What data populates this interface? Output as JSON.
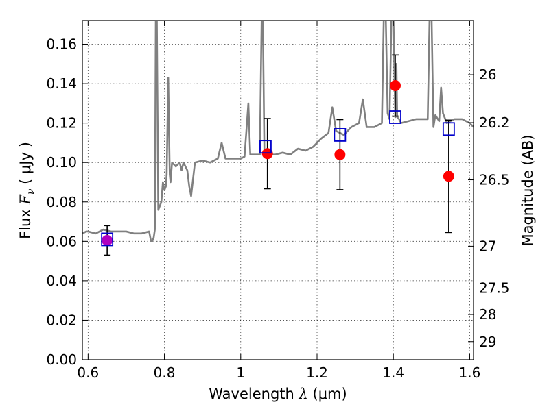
{
  "chart_data": {
    "type": "scatter",
    "title": "",
    "xlabel": "Wavelength  λ (μm)",
    "xlabel_parts": {
      "text": "Wavelength  ",
      "sym": "λ",
      "unit": " (μm)"
    },
    "ylabel": "Flux  Fν  ( μJy )",
    "ylabel_parts": {
      "text": "Flux  ",
      "sym": "F",
      "sub": "ν",
      "unit": "  ( μJy )"
    },
    "y2label": "Magnitude (AB)",
    "xlim": [
      0.585,
      1.61
    ],
    "ylim": [
      0.0,
      0.172
    ],
    "grid": true,
    "x_ticks": [
      {
        "value": 0.6,
        "label": "0.6"
      },
      {
        "value": 0.8,
        "label": "0.8"
      },
      {
        "value": 1.0,
        "label": "1"
      },
      {
        "value": 1.2,
        "label": "1.2"
      },
      {
        "value": 1.4,
        "label": "1.4"
      },
      {
        "value": 1.6,
        "label": "1.6"
      }
    ],
    "y_ticks": [
      {
        "value": 0.0,
        "label": "0.00"
      },
      {
        "value": 0.02,
        "label": "0.02"
      },
      {
        "value": 0.04,
        "label": "0.04"
      },
      {
        "value": 0.06,
        "label": "0.06"
      },
      {
        "value": 0.08,
        "label": "0.08"
      },
      {
        "value": 0.1,
        "label": "0.10"
      },
      {
        "value": 0.12,
        "label": "0.12"
      },
      {
        "value": 0.14,
        "label": "0.14"
      },
      {
        "value": 0.16,
        "label": "0.16"
      }
    ],
    "y2_ticks": [
      {
        "value": 26,
        "label": "26"
      },
      {
        "value": 26.2,
        "label": "26.2"
      },
      {
        "value": 26.5,
        "label": "26.5"
      },
      {
        "value": 27,
        "label": "27"
      },
      {
        "value": 27.5,
        "label": "27.5"
      },
      {
        "value": 28,
        "label": "28"
      },
      {
        "value": 29,
        "label": "29"
      }
    ],
    "colors": {
      "model": "#808080",
      "observed": "#ff0000",
      "observed_first": "#b000c0",
      "model_band": "#0000cc",
      "errorbar": "#000000"
    },
    "series": [
      {
        "kind": "model_spectrum",
        "x": [
          0.585,
          0.595,
          0.6,
          0.62,
          0.64,
          0.66,
          0.68,
          0.7,
          0.72,
          0.74,
          0.76,
          0.765,
          0.768,
          0.772,
          0.775,
          0.7775,
          0.78,
          0.784,
          0.788,
          0.792,
          0.796,
          0.8,
          0.804,
          0.806,
          0.81,
          0.814,
          0.816,
          0.82,
          0.83,
          0.84,
          0.845,
          0.85,
          0.86,
          0.865,
          0.87,
          0.88,
          0.88,
          0.9,
          0.92,
          0.94,
          0.95,
          0.96,
          0.98,
          1.0,
          1.01,
          1.02,
          1.025,
          1.03,
          1.05,
          1.055,
          1.058,
          1.062,
          1.065,
          1.068,
          1.075,
          1.09,
          1.11,
          1.13,
          1.15,
          1.17,
          1.19,
          1.21,
          1.23,
          1.24,
          1.25,
          1.27,
          1.29,
          1.31,
          1.32,
          1.33,
          1.35,
          1.37,
          1.375,
          1.38,
          1.385,
          1.39,
          1.395,
          1.4,
          1.405,
          1.408,
          1.41,
          1.415,
          1.42,
          1.44,
          1.46,
          1.48,
          1.49,
          1.495,
          1.5,
          1.505,
          1.51,
          1.52,
          1.525,
          1.53,
          1.54,
          1.56,
          1.58,
          1.6,
          1.61
        ],
        "y": [
          0.064,
          0.065,
          0.065,
          0.064,
          0.066,
          0.065,
          0.065,
          0.065,
          0.064,
          0.064,
          0.065,
          0.06,
          0.06,
          0.062,
          0.066,
          0.175,
          0.175,
          0.076,
          0.078,
          0.08,
          0.09,
          0.086,
          0.088,
          0.094,
          0.143,
          0.094,
          0.09,
          0.1,
          0.098,
          0.1,
          0.096,
          0.1,
          0.096,
          0.088,
          0.083,
          0.1,
          0.1,
          0.101,
          0.1,
          0.102,
          0.11,
          0.102,
          0.102,
          0.102,
          0.103,
          0.13,
          0.104,
          0.104,
          0.104,
          0.175,
          0.175,
          0.104,
          0.106,
          0.105,
          0.104,
          0.104,
          0.105,
          0.104,
          0.107,
          0.106,
          0.108,
          0.112,
          0.115,
          0.128,
          0.116,
          0.114,
          0.118,
          0.12,
          0.132,
          0.118,
          0.118,
          0.12,
          0.175,
          0.175,
          0.125,
          0.122,
          0.175,
          0.175,
          0.123,
          0.15,
          0.123,
          0.122,
          0.12,
          0.121,
          0.122,
          0.122,
          0.122,
          0.175,
          0.175,
          0.118,
          0.124,
          0.121,
          0.138,
          0.125,
          0.12,
          0.122,
          0.122,
          0.12,
          0.118
        ]
      },
      {
        "kind": "model_band_flux",
        "marker": "square",
        "x": [
          0.65,
          1.065,
          1.26,
          1.405,
          1.545
        ],
        "y": [
          0.061,
          0.108,
          0.114,
          0.123,
          0.117
        ]
      },
      {
        "kind": "observed_flux",
        "marker": "circle",
        "x": [
          0.65,
          1.07,
          1.26,
          1.405,
          1.545
        ],
        "y": [
          0.0605,
          0.1045,
          0.104,
          0.139,
          0.093
        ],
        "yerr": [
          0.0075,
          0.0178,
          0.0178,
          0.0155,
          0.0285
        ]
      }
    ]
  }
}
